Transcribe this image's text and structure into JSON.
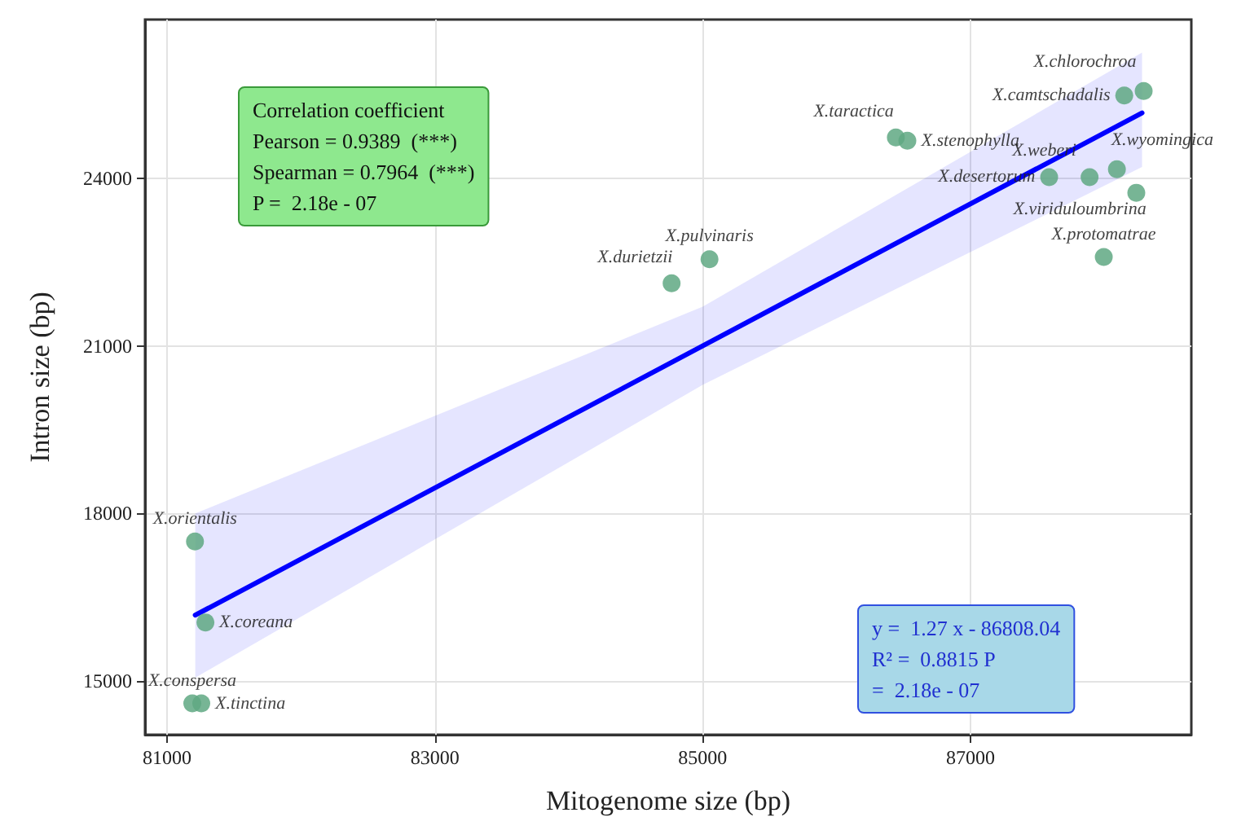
{
  "chart_data": {
    "type": "scatter",
    "xlabel": "Mitogenome size (bp)",
    "ylabel": "Intron size (bp)",
    "xlim": [
      80835,
      88650
    ],
    "ylim": [
      14040,
      26840
    ],
    "xticks": [
      81000,
      83000,
      85000,
      87000
    ],
    "yticks": [
      15000,
      18000,
      21000,
      24000
    ],
    "grid": true,
    "marker": "circle",
    "series": [
      {
        "color": "#5fa883",
        "x": [
          81208,
          81286,
          81188,
          81255,
          84768,
          85051,
          86443,
          86529,
          87588,
          87890,
          88094,
          88239,
          87996,
          88149,
          88294
        ],
        "values": [
          17500,
          16050,
          14600,
          14600,
          22120,
          22550,
          24730,
          24670,
          24020,
          24020,
          24160,
          23740,
          22590,
          25480,
          25560
        ],
        "value_labels": [
          "X.orientalis",
          "X.coreana",
          "X.conspersa",
          "X.tinctina",
          "X.durietzii",
          "X.pulvinaris",
          "X.taractica",
          "X.stenophylla",
          "X.desertorum",
          "X.weberi",
          "X.wyomingica",
          "X.viriduloumbrina",
          "X.protomatrae",
          "X.camtschadalis",
          "X.chlorochroa"
        ]
      },
      {
        "type": "line",
        "color": "#0000ff",
        "line_style": "solid",
        "marker": "none",
        "x": [
          81210,
          85000,
          88282
        ],
        "values": [
          16180,
          21000,
          25170
        ],
        "lower": [
          15060,
          20300,
          24200
        ],
        "upper": [
          18000,
          21700,
          26250
        ]
      }
    ],
    "annotations": [
      "Correlation coefficient\nPearson = 0.9389  (***)\nSpearman = 0.7964  (***)\nP =  2.18e - 07",
      "y =  1.27 x - 86808.04\nR² =  0.8815 P\n=  2.18e - 07"
    ]
  }
}
